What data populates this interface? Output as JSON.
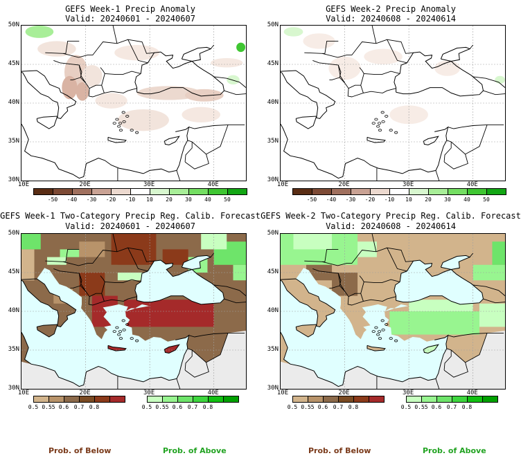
{
  "panels": [
    {
      "id": "p1",
      "title": "GEFS Week-1 Precip Anomaly",
      "valid": "Valid: 20240601 - 20240607",
      "type": "anomaly"
    },
    {
      "id": "p2",
      "title": "GEFS Week-2 Precip Anomaly",
      "valid": "Valid: 20240608 - 20240614",
      "type": "anomaly"
    },
    {
      "id": "p3",
      "title": "GEFS Week-1 Two-Category Precip Reg. Calib. Forecast",
      "valid": "Valid: 20240601 - 20240607",
      "type": "prob"
    },
    {
      "id": "p4",
      "title": "GEFS Week-2 Two-Category Precip Reg. Calib. Forecast",
      "valid": "Valid: 20240608 - 20240614",
      "type": "prob"
    }
  ],
  "axes": {
    "lat_labels": [
      "50N",
      "45N",
      "40N",
      "35N",
      "30N"
    ],
    "lon_labels": [
      "10E",
      "20E",
      "30E",
      "40E"
    ]
  },
  "anomaly_colorbar": {
    "ticks": [
      "-50",
      "-40",
      "-30",
      "-20",
      "-10",
      "10",
      "20",
      "30",
      "40",
      "50"
    ],
    "colors": [
      "#5a2d14",
      "#7d4a35",
      "#a0705e",
      "#c9a294",
      "#ecd9cf",
      "#ffffff",
      "#d8f7cf",
      "#a8ee98",
      "#74de62",
      "#3fc632",
      "#12a614"
    ]
  },
  "prob_colorbars": {
    "below": {
      "ticks": [
        "0.5",
        "0.55",
        "0.6",
        "0.7",
        "0.8"
      ],
      "colors": [
        "#d2b48c",
        "#b8936a",
        "#8c6a4a",
        "#7a4a22",
        "#8b3a1a",
        "#a52a2a"
      ]
    },
    "above": {
      "ticks": [
        "0.5",
        "0.55",
        "0.6",
        "0.7",
        "0.8"
      ],
      "colors": [
        "#c8ffc0",
        "#98f590",
        "#6ee46a",
        "#3ed63e",
        "#12c012",
        "#00a000"
      ]
    }
  },
  "legend": {
    "below_label": "Prob. of Below",
    "above_label": "Prob. of Above",
    "below_color": "#7a3a1a",
    "above_color": "#22a322"
  },
  "colors": {
    "sea": "#e0ffff",
    "no_data_land": "#ebebeb",
    "coast": "#000000",
    "grid": "#a0a0a0"
  }
}
